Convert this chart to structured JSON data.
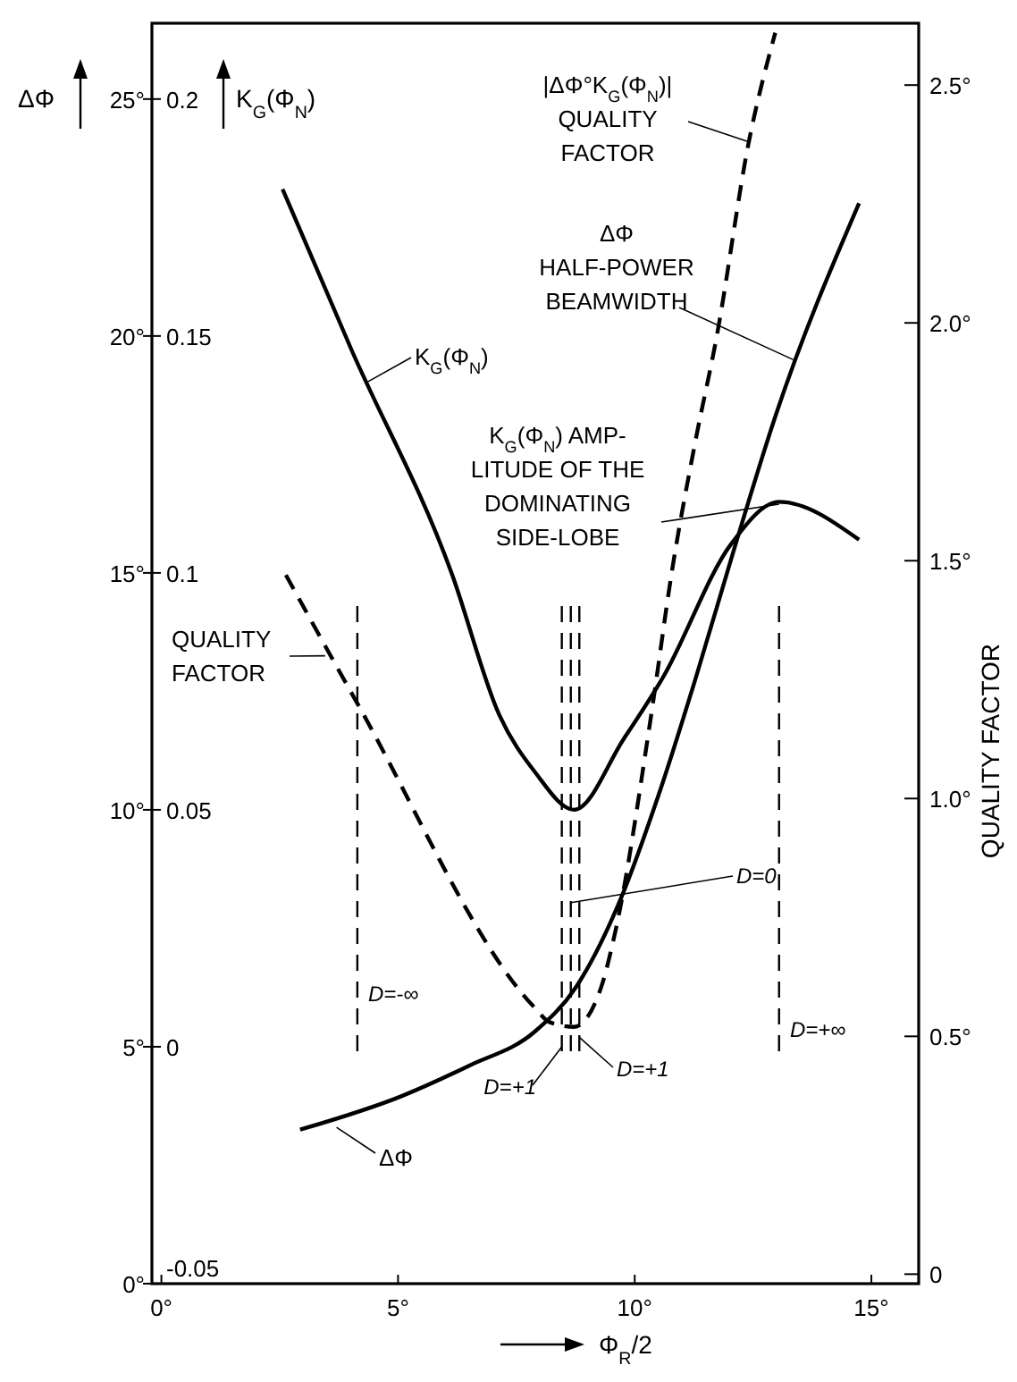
{
  "chart_data": {
    "type": "line",
    "xlabel": "Φ$_{R}$/2",
    "ylabel": "ΔΦ",
    "y3label": "K$_{G}$(Φ$_{N}$)",
    "y2label": "QUALITY FACTOR",
    "xlim": [
      -0.2,
      16
    ],
    "xticks": [
      {
        "value": 0,
        "label": "0°"
      },
      {
        "value": 5,
        "label": "5°"
      },
      {
        "value": 10,
        "label": "10°"
      },
      {
        "value": 15,
        "label": "15°"
      }
    ],
    "ylim": [
      0,
      26.6
    ],
    "yticks": [
      {
        "value": 0,
        "label": "0°"
      },
      {
        "value": 5,
        "label": "5°"
      },
      {
        "value": 10,
        "label": "10°"
      },
      {
        "value": 15,
        "label": "15°"
      },
      {
        "value": 20,
        "label": "20°"
      },
      {
        "value": 25,
        "label": "25°"
      }
    ],
    "y3lim": [
      -0.05,
      0.216
    ],
    "y3ticks": [
      -0.05,
      0,
      0.05,
      0.1,
      0.15,
      0.2
    ],
    "y2lim": [
      -0.02,
      2.63
    ],
    "y2ticks": [
      0,
      {
        "value": 0.5,
        "label": "0.5°"
      },
      {
        "value": 1,
        "label": "1.0°"
      },
      {
        "value": 1.5,
        "label": "1.5°"
      },
      {
        "value": 2,
        "label": "2.0°"
      },
      {
        "value": 2.5,
        "label": "2.5°"
      }
    ],
    "grid": false,
    "legend": false,
    "marker": "none",
    "series": [
      {
        "color": "#000000",
        "line_style": "solid",
        "x": [
          2.93,
          5.08,
          6.5,
          7.89,
          8.76,
          9.7,
          10.5,
          11.28,
          12.1,
          12.97,
          14.74
        ],
        "values": [
          3.25,
          3.96,
          4.6,
          5.32,
          6.26,
          8.11,
          10.3,
          12.75,
          15.5,
          18.3,
          22.8
        ]
      },
      {
        "color": "#000000",
        "line_style": "solid",
        "axis": "y3",
        "x": [
          2.56,
          4.02,
          6.13,
          7.14,
          7.89,
          8.72,
          9.77,
          10.6,
          12.03,
          13.05,
          14.74
        ],
        "values": [
          0.181,
          0.147,
          0.1,
          0.07,
          0.058,
          0.05,
          0.065,
          0.078,
          0.106,
          0.115,
          0.107
        ]
      },
      {
        "color": "#000000",
        "line_style": "dashed",
        "axis": "y2",
        "x": [
          2.63,
          4.14,
          7.89,
          8.2,
          8.72,
          9.28,
          9.59,
          10.34,
          10.79,
          11.28,
          11.73,
          12.41,
          12.97
        ],
        "values": [
          1.47,
          1.2,
          0.56,
          0.53,
          0.52,
          0.6,
          0.72,
          1.17,
          1.48,
          1.75,
          1.97,
          2.38,
          2.61
        ]
      }
    ],
    "ref_lines": [
      {
        "axis": "x",
        "value": 4.14,
        "line_style": "dashed",
        "color": "#000000"
      },
      {
        "axis": "x",
        "value": 8.46,
        "line_style": "dashed",
        "color": "#000000"
      },
      {
        "axis": "x",
        "value": 8.65,
        "line_style": "dashed",
        "color": "#000000"
      },
      {
        "axis": "x",
        "value": 8.83,
        "line_style": "dashed",
        "color": "#000000"
      },
      {
        "axis": "x",
        "value": 13.05,
        "line_style": "dashed",
        "color": "#000000"
      }
    ],
    "annotations": [
      {
        "text": "|ΔΦ°K$_{G}$(Φ$_{N}$)|\nQUALITY\nFACTOR",
        "x": 12.4,
        "y": 24.1
      },
      {
        "text": "ΔΦ\nHALF-POWER\nBEAMWIDTH",
        "x": 13.35,
        "y": 19.5
      },
      {
        "text": "K$_{G}$(Φ$_{N}$)",
        "x": 4.3,
        "y": 19.0
      },
      {
        "text": "K$_{G}$(Φ$_{N}$) AMP-\nLITUDE OF THE\nDOMINATING\nSIDE-LOBE",
        "x": 13.05,
        "y": 16.45
      },
      {
        "text": "QUALITY\nFACTOR",
        "x": 3.46,
        "y": 13.25
      },
      {
        "text": "ΔΦ",
        "x": 3.7,
        "y": 3.3
      },
      "D=-∞",
      {
        "text": "D=+1",
        "x": 8.46,
        "y": 5.0
      },
      {
        "text": "D=0",
        "x": 8.65,
        "y": 8.04
      },
      {
        "text": "D=+1",
        "x": 8.83,
        "y": 5.2
      },
      "D=+∞"
    ]
  }
}
